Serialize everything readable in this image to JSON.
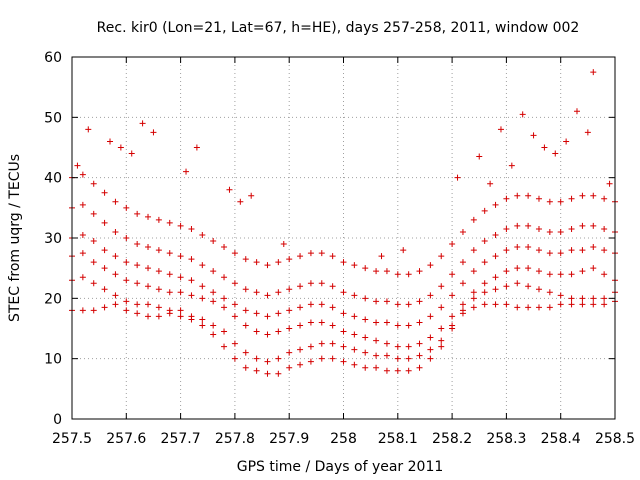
{
  "chart_data": {
    "type": "scatter",
    "title": "Rec. kir0 (Lon=21, Lat=67, h=HE), days 257-258, 2011, window 002",
    "xlabel": "GPS time / Days of year 2011",
    "ylabel": "STEC from uqrg / TECUs",
    "xlim": [
      257.5,
      258.5
    ],
    "ylim": [
      0,
      60
    ],
    "xticks": [
      "257.5",
      "257.6",
      "257.7",
      "257.8",
      "257.9",
      "258",
      "258.1",
      "258.2",
      "258.3",
      "258.4",
      "258.5"
    ],
    "yticks": [
      "0",
      "10",
      "20",
      "30",
      "40",
      "50",
      "60"
    ],
    "grid": true,
    "marker": "plus",
    "color": "#d40000",
    "series": [
      {
        "x": [
          257.5,
          257.52,
          257.54,
          257.56,
          257.58,
          257.6,
          257.62,
          257.64,
          257.66,
          257.68,
          257.7,
          257.72,
          257.74,
          257.76,
          257.78,
          257.8,
          257.82,
          257.84,
          257.86,
          257.88,
          257.9,
          257.92,
          257.94,
          257.96,
          257.98,
          258.0,
          258.02,
          258.04,
          258.06,
          258.08,
          258.1,
          258.12,
          258.14,
          258.16,
          258.18,
          258.2,
          258.22,
          258.24,
          258.26,
          258.28,
          258.3,
          258.32,
          258.34,
          258.36,
          258.38,
          258.4,
          258.42,
          258.44,
          258.46,
          258.48,
          258.5
        ],
        "y": [
          18,
          18,
          18,
          18.5,
          19,
          18,
          17.5,
          17,
          17,
          17.5,
          17,
          16.5,
          15.5,
          14,
          12,
          10,
          8.5,
          8,
          7.5,
          7.5,
          8.5,
          9,
          9.5,
          10,
          10,
          9.5,
          9,
          8.5,
          8.5,
          8,
          8,
          8,
          8.5,
          10,
          12,
          15,
          17.5,
          18.5,
          19,
          19,
          19,
          18.5,
          18.5,
          18.5,
          18.5,
          19,
          19,
          19,
          19,
          19,
          19.5
        ]
      },
      {
        "x": [
          257.5,
          257.52,
          257.54,
          257.56,
          257.58,
          257.6,
          257.62,
          257.64,
          257.66,
          257.68,
          257.7,
          257.72,
          257.74,
          257.76,
          257.78,
          257.8,
          257.82,
          257.84,
          257.86,
          257.88,
          257.9,
          257.92,
          257.94,
          257.96,
          257.98,
          258.0,
          258.02,
          258.04,
          258.06,
          258.08,
          258.1,
          258.12,
          258.14,
          258.16,
          258.18,
          258.2,
          258.22,
          258.24,
          258.26,
          258.28,
          258.3,
          258.32,
          258.34,
          258.36,
          258.38,
          258.4,
          258.42,
          258.44,
          258.46,
          258.48,
          258.5
        ],
        "y": [
          23,
          23.5,
          22.5,
          21.5,
          20.5,
          19.5,
          19,
          19,
          18.5,
          18,
          18,
          17,
          16.5,
          15.5,
          14.5,
          12.5,
          11,
          10,
          9.5,
          10,
          11,
          11.5,
          12,
          12.5,
          12.5,
          12,
          11.5,
          11,
          10.5,
          10.5,
          10,
          10,
          10.5,
          11.5,
          13,
          15.5,
          18,
          20,
          21,
          21.5,
          22,
          22.5,
          22,
          21.5,
          21,
          20.5,
          20,
          20,
          20,
          20,
          21
        ]
      },
      {
        "x": [
          257.5,
          257.52,
          257.54,
          257.56,
          257.58,
          257.6,
          257.62,
          257.64,
          257.66,
          257.68,
          257.7,
          257.72,
          257.74,
          257.76,
          257.78,
          257.8,
          257.82,
          257.84,
          257.86,
          257.88,
          257.9,
          257.92,
          257.94,
          257.96,
          257.98,
          258.0,
          258.02,
          258.04,
          258.06,
          258.08,
          258.1,
          258.12,
          258.14,
          258.16,
          258.18,
          258.2,
          258.22,
          258.24,
          258.26,
          258.28,
          258.3,
          258.32,
          258.34,
          258.36,
          258.38,
          258.4,
          258.42,
          258.44,
          258.46,
          258.48,
          258.5
        ],
        "y": [
          27,
          27.5,
          26,
          25,
          24,
          23,
          22.5,
          22,
          21.5,
          21,
          21,
          20.5,
          20,
          19.5,
          18.5,
          17,
          15.5,
          14.5,
          14,
          14.5,
          15,
          15.5,
          16,
          16,
          15.5,
          14.5,
          14,
          13.5,
          13,
          12.5,
          12,
          12,
          12.5,
          13.5,
          15,
          17,
          19,
          21,
          22.5,
          23.5,
          24.5,
          25,
          25,
          24.5,
          24,
          24,
          24,
          24.5,
          25,
          24,
          23
        ]
      },
      {
        "x": [
          257.5,
          257.52,
          257.54,
          257.56,
          257.58,
          257.6,
          257.62,
          257.64,
          257.66,
          257.68,
          257.7,
          257.72,
          257.74,
          257.76,
          257.78,
          257.8,
          257.82,
          257.84,
          257.86,
          257.88,
          257.9,
          257.92,
          257.94,
          257.96,
          257.98,
          258.0,
          258.02,
          258.04,
          258.06,
          258.08,
          258.1,
          258.12,
          258.14,
          258.16,
          258.18,
          258.2,
          258.22,
          258.24,
          258.26,
          258.28,
          258.3,
          258.32,
          258.34,
          258.36,
          258.38,
          258.4,
          258.42,
          258.44,
          258.46,
          258.48,
          258.5
        ],
        "y": [
          30,
          30.5,
          29.5,
          28,
          27,
          26,
          25.5,
          25,
          24.5,
          24,
          23.5,
          23,
          22,
          21,
          20,
          19,
          18,
          17.5,
          17,
          17.5,
          18,
          18.5,
          19,
          19,
          18.5,
          17.5,
          17,
          16.5,
          16,
          16,
          15.5,
          15.5,
          16,
          17,
          18.5,
          20.5,
          22.5,
          24.5,
          26,
          27,
          28,
          28.5,
          28.5,
          28,
          27.5,
          27.5,
          28,
          28,
          28.5,
          28,
          27.5
        ]
      },
      {
        "x": [
          257.5,
          257.52,
          257.54,
          257.56,
          257.58,
          257.6,
          257.62,
          257.64,
          257.66,
          257.68,
          257.7,
          257.72,
          257.74,
          257.76,
          257.78,
          257.8,
          257.82,
          257.84,
          257.86,
          257.88,
          257.9,
          257.92,
          257.94,
          257.96,
          257.98,
          258.0,
          258.02,
          258.04,
          258.06,
          258.08,
          258.1,
          258.12,
          258.14,
          258.16,
          258.18,
          258.2,
          258.22,
          258.24,
          258.26,
          258.28,
          258.3,
          258.32,
          258.34,
          258.36,
          258.38,
          258.4,
          258.42,
          258.44,
          258.46,
          258.48,
          258.5
        ],
        "y": [
          35,
          35.5,
          34,
          32.5,
          31,
          30,
          29,
          28.5,
          28,
          27.5,
          27,
          26.5,
          25.5,
          24.5,
          23.5,
          22.5,
          21.5,
          21,
          20.5,
          21,
          21.5,
          22,
          22.5,
          22.5,
          22,
          21,
          20.5,
          20,
          19.5,
          19.5,
          19,
          19,
          19.5,
          20.5,
          22,
          24,
          26,
          28,
          29.5,
          30.5,
          31.5,
          32,
          32,
          31.5,
          31,
          31,
          31.5,
          32,
          32,
          31.5,
          31
        ]
      },
      {
        "x": [
          257.5,
          257.52,
          257.54,
          257.56,
          257.58,
          257.6,
          257.62,
          257.64,
          257.66,
          257.68,
          257.7,
          257.72,
          257.74,
          257.76,
          257.78,
          257.8,
          257.82,
          257.84,
          257.86,
          257.88,
          257.9,
          257.92,
          257.94,
          257.96,
          257.98,
          258.0,
          258.02,
          258.04,
          258.06,
          258.08,
          258.1,
          258.12,
          258.14,
          258.16,
          258.18,
          258.2,
          258.22,
          258.24,
          258.26,
          258.28,
          258.3,
          258.32,
          258.34,
          258.36,
          258.38,
          258.4,
          258.42,
          258.44,
          258.46,
          258.48,
          258.5
        ],
        "y": [
          40,
          40.5,
          39,
          37.5,
          36,
          35,
          34,
          33.5,
          33,
          32.5,
          32,
          31.5,
          30.5,
          29.5,
          28.5,
          27.5,
          26.5,
          26,
          25.5,
          26,
          26.5,
          27,
          27.5,
          27.5,
          27,
          26,
          25.5,
          25,
          24.5,
          24.5,
          24,
          24,
          24.5,
          25.5,
          27,
          29,
          31,
          33,
          34.5,
          35.5,
          36.5,
          37,
          37,
          36.5,
          36,
          36,
          36.5,
          37,
          37,
          36.5,
          36
        ]
      },
      {
        "x": [
          257.51,
          257.53,
          257.57,
          257.59,
          257.61,
          257.63,
          257.65,
          257.71,
          257.73,
          257.79,
          257.81,
          257.83,
          257.89,
          258.07,
          258.11,
          258.21,
          258.25,
          258.27,
          258.29,
          258.31,
          258.33,
          258.35,
          258.37,
          258.39,
          258.41,
          258.43,
          258.45,
          258.46,
          258.49
        ],
        "y": [
          42,
          48,
          46,
          45,
          44,
          49,
          47.5,
          41,
          45,
          38,
          36,
          37,
          29,
          27,
          28,
          40,
          43.5,
          39,
          48,
          42,
          50.5,
          47,
          45,
          44,
          46,
          51,
          47.5,
          57.5,
          39
        ]
      }
    ]
  }
}
